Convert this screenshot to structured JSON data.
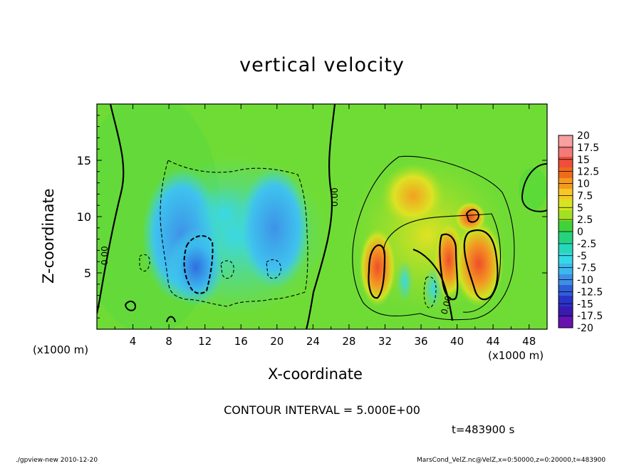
{
  "chart_data": {
    "type": "heatmap",
    "title": "vertical velocity",
    "xlabel": "X-coordinate",
    "ylabel": "Z-coordinate",
    "x_unit": "(x1000 m)",
    "y_unit": "(x1000 m)",
    "xlim": [
      0,
      50
    ],
    "ylim": [
      0,
      20
    ],
    "x_ticks": [
      4,
      8,
      12,
      16,
      20,
      24,
      28,
      32,
      36,
      40,
      44,
      48
    ],
    "y_ticks": [
      5,
      10,
      15
    ],
    "colorbar": {
      "labels": [
        "20",
        "17.5",
        "15",
        "12.5",
        "10",
        "7.5",
        "5",
        "2.5",
        "0",
        "-2.5",
        "-5",
        "-7.5",
        "-10",
        "-12.5",
        "-15",
        "-17.5",
        "-20"
      ],
      "colors": [
        "#f6a0a0",
        "#f27a7a",
        "#ee4e3a",
        "#ef6a1c",
        "#f59a1e",
        "#f7c825",
        "#d6e421",
        "#a3e021",
        "#3fd23a",
        "#26d27a",
        "#27d8b8",
        "#35d9e6",
        "#3cb8ee",
        "#3d8fe6",
        "#2e5ed8",
        "#2a33c8",
        "#3a1ab0",
        "#6a12b0"
      ]
    },
    "contour_labels": [
      "0.00",
      "0.00",
      "0.00"
    ],
    "contour_interval_text": "CONTOUR INTERVAL = 5.000E+00",
    "time_text": "t=483900 s"
  },
  "footer": {
    "left": "./gpview-new 2010-12-20",
    "right": "MarsCond_VelZ.nc@VelZ,x=0:50000,z=0:20000,t=483900"
  }
}
